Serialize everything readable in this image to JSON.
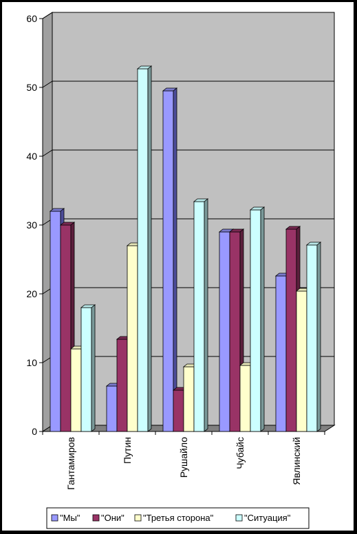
{
  "chart_data": {
    "type": "bar",
    "title": "",
    "xlabel": "",
    "ylabel": "",
    "categories": [
      "Гантамиров",
      "Путин",
      "Рушайло",
      "Чубайс",
      "Явлинский"
    ],
    "series": [
      {
        "name": "\"Мы\"",
        "values": [
          32,
          6.6,
          49.5,
          29,
          22.6
        ]
      },
      {
        "name": "\"Они\"",
        "values": [
          30,
          13.4,
          6,
          29,
          29.4
        ]
      },
      {
        "name": "\"Третья сторона\"",
        "values": [
          12,
          27,
          9.4,
          9.6,
          20.4
        ]
      },
      {
        "name": "\"Ситуация\"",
        "values": [
          18,
          52.7,
          33.4,
          32.2,
          27.1
        ]
      }
    ],
    "ylim": [
      0,
      60
    ],
    "yticks": [
      0,
      10,
      20,
      30,
      40,
      50,
      60
    ],
    "grid": true,
    "legend_position": "bottom",
    "colors": {
      "series": [
        "#9999ff",
        "#993366",
        "#ffffcc",
        "#ccffff"
      ],
      "series_side": [
        "#4c4c99",
        "#5c1f3d",
        "#b3b38f",
        "#7a9999"
      ],
      "series_top": [
        "#7a7acc",
        "#7a2952",
        "#e6e6b8",
        "#b8e6e6"
      ],
      "plot_bg": "#c0c0c0",
      "floor": "#808080",
      "wall_side": "#a0a0a0",
      "gridline": "#000000"
    }
  }
}
